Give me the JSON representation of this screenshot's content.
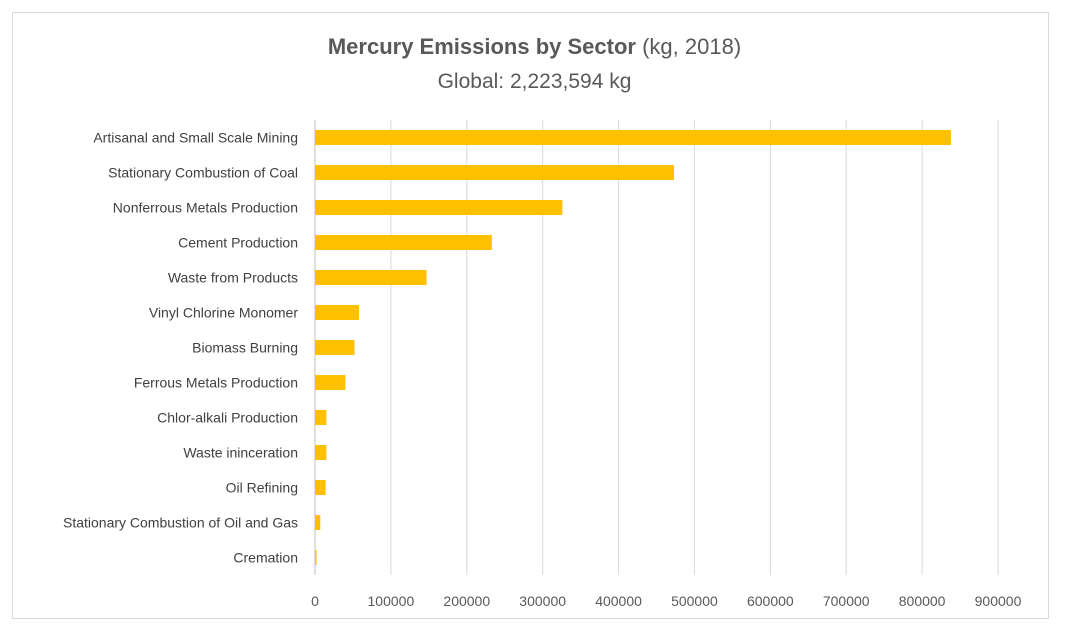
{
  "chart_data": {
    "type": "bar",
    "orientation": "horizontal",
    "title": "Mercury Emissions by Sector",
    "title_suffix": "(kg, 2018)",
    "subtitle": "Global: 2,223,594 kg",
    "categories": [
      "Artisanal and Small Scale Mining",
      "Stationary Combustion of Coal",
      "Nonferrous Metals Production",
      "Cement Production",
      "Waste from Products",
      "Vinyl Chlorine Monomer",
      "Biomass Burning",
      "Ferrous Metals Production",
      "Chlor-alkali Production",
      "Waste ininceration",
      "Oil Refining",
      "Stationary Combustion of Oil and Gas",
      "Cremation"
    ],
    "values": [
      838000,
      473000,
      326000,
      233000,
      147000,
      58000,
      52000,
      40000,
      15000,
      15000,
      14000,
      7000,
      2000
    ],
    "xlim": [
      0,
      900000
    ],
    "xticks": [
      "0",
      "100000",
      "200000",
      "300000",
      "400000",
      "500000",
      "600000",
      "700000",
      "800000",
      "900000"
    ],
    "xlabel": "",
    "ylabel": "",
    "grid": "vertical",
    "legend": "none",
    "bar_color": "#FFC000",
    "grid_color": "#d9d9d9"
  }
}
